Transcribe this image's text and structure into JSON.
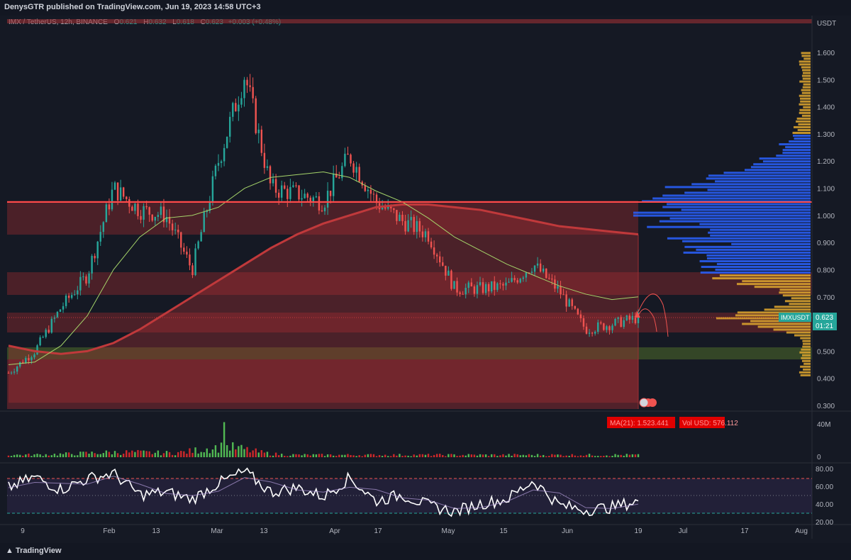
{
  "header": {
    "published": "DenysGTR published on TradingView.com, Jun 19, 2023 14:58 UTC+3"
  },
  "legend": {
    "symbol": "IMX / TetherUS, 12h, BINANCE",
    "o_label": "O",
    "o": "0.621",
    "h_label": "H",
    "h": "0.632",
    "l_label": "L",
    "l": "0.618",
    "c_label": "C",
    "c": "0.623",
    "change": "+0.003 (+0.48%)"
  },
  "price_axis": {
    "currency": "USDT",
    "ticks": [
      "1.600",
      "1.500",
      "1.400",
      "1.300",
      "1.200",
      "1.100",
      "1.000",
      "0.900",
      "0.800",
      "0.700",
      "0.600",
      "0.500",
      "0.400",
      "0.300"
    ]
  },
  "price_tag": {
    "symbol": "IMXUSDT",
    "price": "0.623",
    "countdown": "01:21"
  },
  "volume_axis": {
    "ticks": [
      "40M",
      "0"
    ]
  },
  "rsi_axis": {
    "ticks": [
      "80.00",
      "60.00",
      "40.00",
      "20.00"
    ]
  },
  "time_axis": {
    "labels": [
      "9",
      "Feb",
      "13",
      "Mar",
      "13",
      "Apr",
      "17",
      "May",
      "15",
      "Jun",
      "19",
      "Jul",
      "17",
      "Aug"
    ]
  },
  "badges": {
    "ma": "MA(21): 1.523.441",
    "vol": "Vol USD: 576.112"
  },
  "footer": {
    "brand": "TradingView"
  },
  "colors": {
    "bg": "#151924",
    "up": "#26a69a",
    "down": "#ef5350",
    "ma_short": "#a5d46a",
    "ma_long": "#c0393b",
    "resistance": "#ff4a4a",
    "vp_value_area": "#2962ff",
    "vp_outside": "#e0a82e"
  },
  "chart_data": {
    "type": "candlestick",
    "timeframe": "12h",
    "ylim": [
      0.3,
      1.62
    ],
    "key_level": 1.05,
    "x": [
      "Jan 5",
      "Jan 9",
      "Jan 20",
      "Feb 1",
      "Feb 13",
      "Feb 21",
      "Mar 1",
      "Mar 9",
      "Mar 13",
      "Mar 17",
      "Mar 25",
      "Apr 1",
      "Apr 9",
      "Apr 17",
      "Apr 21",
      "Apr 25",
      "May 1",
      "May 9",
      "May 15",
      "May 23",
      "Jun 1",
      "Jun 5",
      "Jun 11",
      "Jun 15",
      "Jun 19"
    ],
    "close": [
      0.42,
      0.5,
      0.66,
      0.78,
      1.1,
      1.02,
      1.0,
      0.8,
      1.2,
      1.52,
      1.1,
      1.08,
      1.05,
      1.22,
      1.05,
      0.98,
      0.93,
      0.73,
      0.73,
      0.74,
      0.82,
      0.72,
      0.58,
      0.6,
      0.623
    ],
    "ma_short": [
      0.45,
      0.46,
      0.52,
      0.63,
      0.8,
      0.92,
      0.99,
      1.0,
      1.03,
      1.1,
      1.14,
      1.15,
      1.16,
      1.14,
      1.09,
      1.05,
      0.99,
      0.92,
      0.87,
      0.82,
      0.78,
      0.74,
      0.71,
      0.69,
      0.7
    ],
    "ma_long": [
      0.52,
      0.5,
      0.49,
      0.5,
      0.53,
      0.58,
      0.64,
      0.7,
      0.76,
      0.82,
      0.88,
      0.93,
      0.97,
      1.0,
      1.03,
      1.04,
      1.04,
      1.03,
      1.02,
      1.0,
      0.98,
      0.96,
      0.95,
      0.94,
      0.93
    ],
    "rsi": [
      60,
      72,
      58,
      70,
      76,
      52,
      55,
      47,
      65,
      78,
      55,
      60,
      50,
      71,
      45,
      52,
      40,
      33,
      42,
      47,
      68,
      40,
      35,
      38,
      45
    ],
    "rsi_bands": [
      70,
      30
    ]
  }
}
